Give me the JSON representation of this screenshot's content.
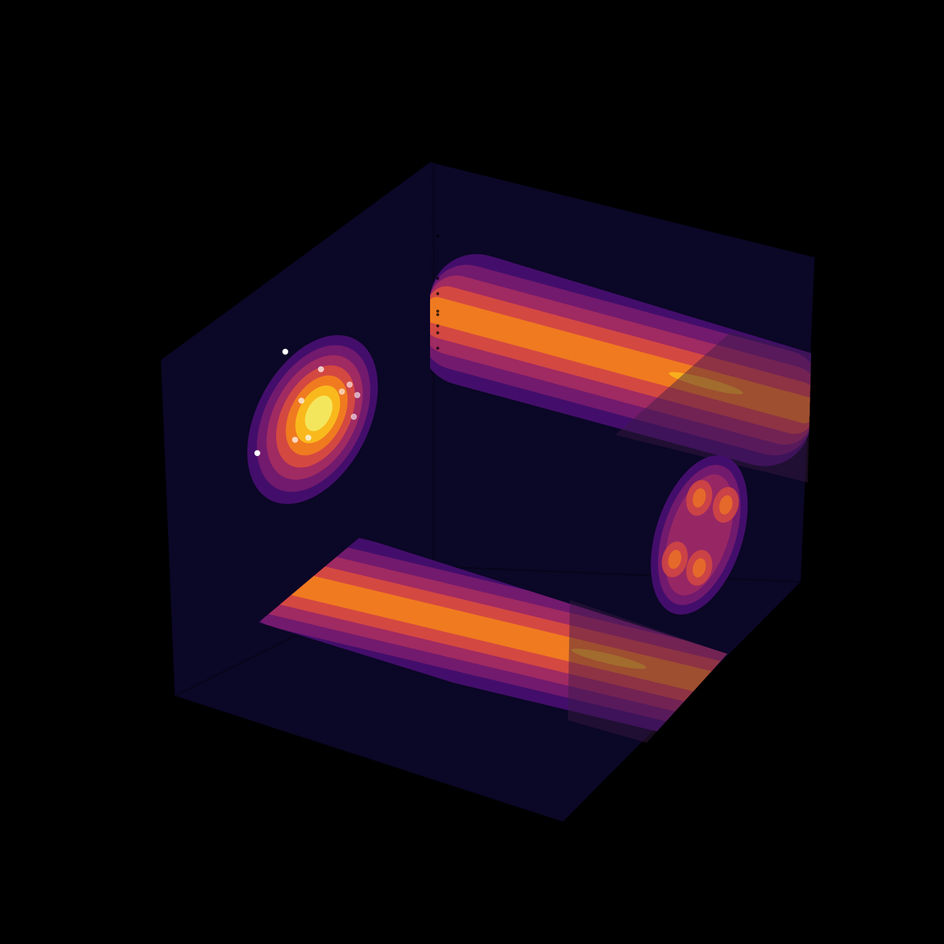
{
  "chart_data": {
    "type": "contour",
    "view": "3d-box",
    "colormap": "inferno",
    "axis_labels": [],
    "tick_labels": [],
    "grid": false,
    "legend": "none",
    "panels": [
      {
        "plane": "left-wall",
        "description_key": "single-peak",
        "levels": 7,
        "peak_level": 7,
        "scatter_points": 10
      },
      {
        "plane": "back-wall",
        "description_key": "elongated-band",
        "levels": 5,
        "peak_level": 6
      },
      {
        "plane": "floor",
        "description_key": "elongated-band",
        "levels": 5,
        "peak_level": 6
      },
      {
        "plane": "right-wall",
        "description_key": "four-peak",
        "levels": 6,
        "peak_level": 5
      }
    ],
    "colors": {
      "background": "#000000",
      "pane": "#0b0726",
      "levels": [
        "#1c0c44",
        "#430e6b",
        "#721a6e",
        "#a02a62",
        "#d44842",
        "#f07a20",
        "#f9b91d",
        "#f4e65c"
      ]
    }
  }
}
